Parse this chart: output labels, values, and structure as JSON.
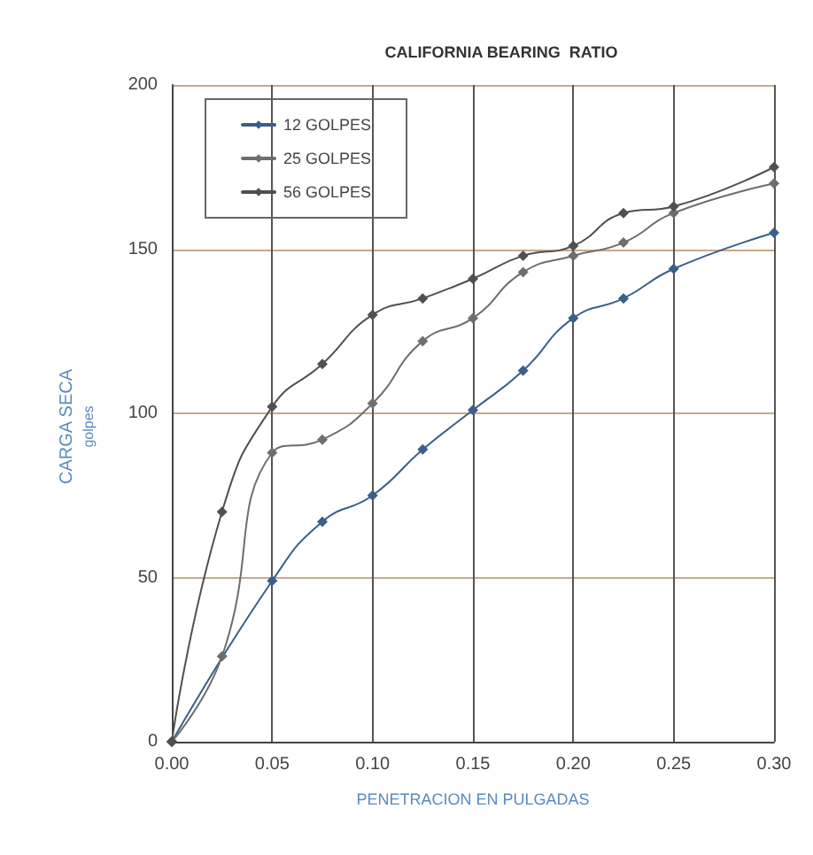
{
  "chart_data": {
    "type": "line",
    "title": "CALIFORNIA BEARING  RATIO",
    "xlabel": "PENETRACION EN PULGADAS",
    "ylabel": "CARGA SECA\ngolpes",
    "series": [
      {
        "name": "12 GOLPES",
        "color": "#3a5f8a",
        "x": [
          0,
          0.05,
          0.075,
          0.1,
          0.125,
          0.15,
          0.175,
          0.2,
          0.225,
          0.25,
          0.3
        ],
        "values": [
          0,
          49,
          67,
          75,
          89,
          101,
          113,
          129,
          135,
          144,
          155
        ]
      },
      {
        "name": "25 GOLPES",
        "color": "#6e6e6e",
        "x": [
          0,
          0.025,
          0.05,
          0.075,
          0.1,
          0.125,
          0.15,
          0.175,
          0.2,
          0.225,
          0.25,
          0.3
        ],
        "values": [
          0,
          26,
          88,
          92,
          103,
          122,
          129,
          143,
          148,
          152,
          161,
          170
        ]
      },
      {
        "name": "56 GOLPES",
        "color": "#505050",
        "x": [
          0,
          0.025,
          0.05,
          0.075,
          0.1,
          0.125,
          0.15,
          0.175,
          0.2,
          0.225,
          0.25,
          0.3
        ],
        "values": [
          0,
          70,
          102,
          115,
          130,
          135,
          141,
          148,
          151,
          161,
          163,
          175
        ]
      }
    ],
    "xlim": [
      0,
      0.3
    ],
    "xticks": [
      {
        "value": 0,
        "label": "0.00"
      },
      {
        "value": 0.05,
        "label": "0.05"
      },
      {
        "value": 0.1,
        "label": "0.10"
      },
      {
        "value": 0.15,
        "label": "0.15"
      },
      {
        "value": 0.2,
        "label": "0.20"
      },
      {
        "value": 0.25,
        "label": "0.25"
      },
      {
        "value": 0.3,
        "label": "0.30"
      }
    ],
    "ylim": [
      0,
      200
    ],
    "yticks": [
      0,
      50,
      100,
      150,
      200
    ],
    "grid": true,
    "legend": "top left",
    "marker": "diamond",
    "line_style": "solid"
  }
}
